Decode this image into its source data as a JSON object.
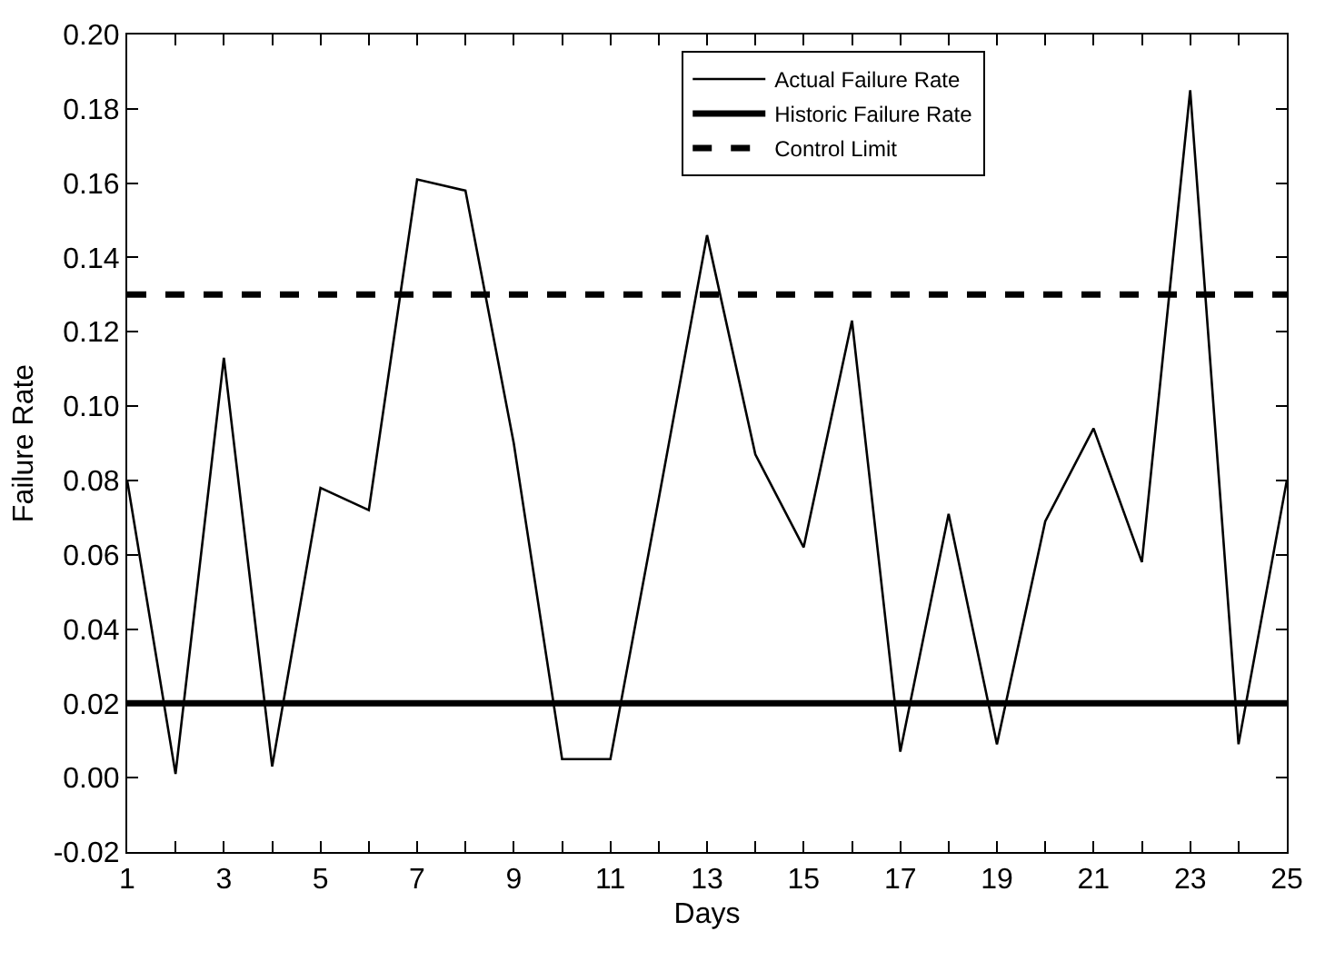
{
  "chart_data": {
    "type": "line",
    "xlabel": "Days",
    "ylabel": "Failure Rate",
    "x": [
      1,
      2,
      3,
      4,
      5,
      6,
      7,
      8,
      9,
      10,
      11,
      12,
      13,
      14,
      15,
      16,
      17,
      18,
      19,
      20,
      21,
      22,
      23,
      24,
      25
    ],
    "series": [
      {
        "name": "Actual Failure Rate",
        "color": "#000000",
        "values": [
          0.08,
          0.001,
          0.113,
          0.003,
          0.078,
          0.072,
          0.161,
          0.158,
          0.09,
          0.005,
          0.005,
          0.075,
          0.146,
          0.087,
          0.062,
          0.123,
          0.007,
          0.071,
          0.009,
          0.069,
          0.094,
          0.058,
          0.185,
          0.009,
          0.08
        ]
      }
    ],
    "ref_lines": [
      {
        "axis": "y",
        "value": 0.02,
        "label": "Historic Failure Rate",
        "color": "#000000",
        "line_style": "solid"
      },
      {
        "axis": "y",
        "value": 0.13,
        "label": "Control Limit",
        "color": "#000000",
        "line_style": "dashed"
      }
    ],
    "xlim": [
      1,
      25
    ],
    "xticks": [
      1,
      {
        "value": 2,
        "label": null
      },
      3,
      {
        "value": 4,
        "label": null
      },
      5,
      {
        "value": 6,
        "label": null
      },
      7,
      {
        "value": 8,
        "label": null
      },
      9,
      {
        "value": 10,
        "label": null
      },
      11,
      {
        "value": 12,
        "label": null
      },
      13,
      {
        "value": 14,
        "label": null
      },
      15,
      {
        "value": 16,
        "label": null
      },
      17,
      {
        "value": 18,
        "label": null
      },
      19,
      {
        "value": 20,
        "label": null
      },
      21,
      {
        "value": 22,
        "label": null
      },
      23,
      {
        "value": 24,
        "label": null
      },
      25
    ],
    "ylim": [
      -0.02,
      0.2
    ],
    "yticks": [
      {
        "value": -0.02,
        "label": "-0.02"
      },
      {
        "value": 0,
        "label": "0.00"
      },
      {
        "value": 0.02,
        "label": "0.02"
      },
      {
        "value": 0.04,
        "label": "0.04"
      },
      {
        "value": 0.06,
        "label": "0.06"
      },
      {
        "value": 0.08,
        "label": "0.08"
      },
      {
        "value": 0.1,
        "label": "0.10"
      },
      {
        "value": 0.12,
        "label": "0.12"
      },
      {
        "value": 0.14,
        "label": "0.14"
      },
      {
        "value": 0.16,
        "label": "0.16"
      },
      {
        "value": 0.18,
        "label": "0.18"
      },
      {
        "value": 0.2,
        "label": "0.20"
      }
    ],
    "legend": "top right",
    "marker": "none",
    "line_style": "solid"
  }
}
